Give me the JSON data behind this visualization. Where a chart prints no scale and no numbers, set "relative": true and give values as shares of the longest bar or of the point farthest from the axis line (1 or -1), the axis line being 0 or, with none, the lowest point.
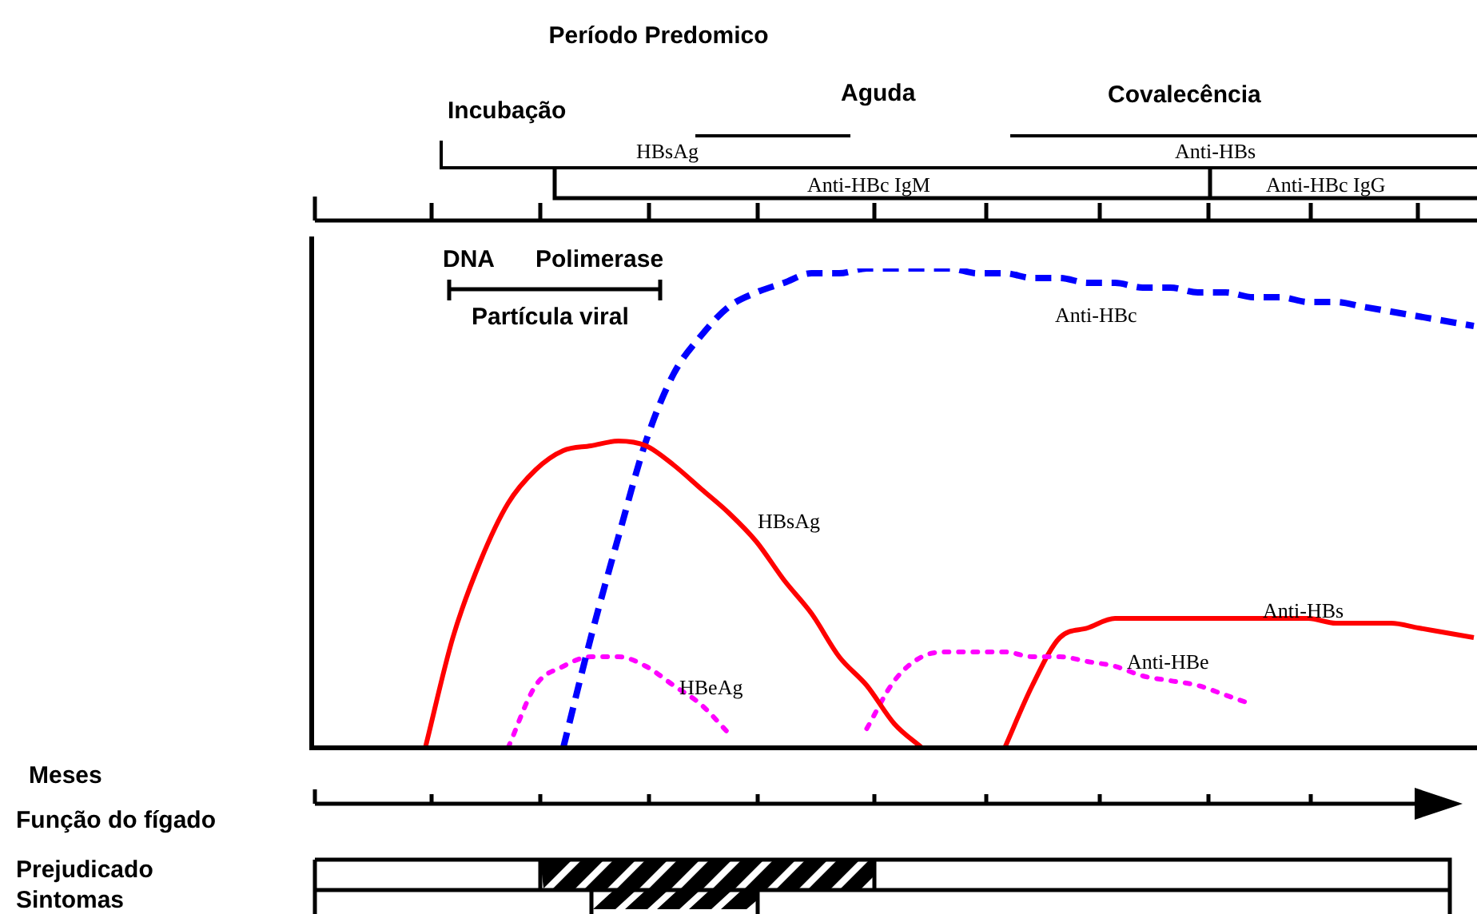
{
  "chart_data": {
    "type": "line",
    "relative": true,
    "legend": false,
    "marker": "none",
    "categories": [
      null,
      null,
      null,
      null,
      null,
      null,
      null,
      null,
      null,
      null,
      null,
      null,
      null,
      null,
      null,
      null,
      null,
      null,
      null,
      null,
      null,
      null,
      null,
      null,
      null,
      null,
      null,
      null,
      null,
      null,
      null,
      null,
      null,
      null,
      null,
      null,
      null,
      null,
      null,
      null,
      null,
      null,
      null
    ],
    "series": [
      {
        "name": "HBsAg",
        "color": "#ff0000",
        "line_style": "solid",
        "values": [
          null,
          null,
          null,
          null,
          0,
          0.23,
          0.39,
          0.51,
          0.58,
          0.62,
          0.63,
          0.64,
          0.63,
          0.59,
          0.54,
          0.49,
          0.43,
          0.35,
          0.28,
          0.19,
          0.13,
          0.05,
          0,
          null,
          null,
          null,
          null,
          null,
          null,
          null,
          null,
          null,
          null,
          null,
          null,
          null,
          null,
          null,
          null,
          null,
          null,
          null,
          null
        ]
      },
      {
        "name": "Anti-HBc",
        "color": "#0000ff",
        "line_style": "dashed",
        "values": [
          null,
          null,
          null,
          null,
          null,
          null,
          null,
          null,
          null,
          0,
          0.23,
          0.44,
          0.64,
          0.78,
          0.86,
          0.92,
          0.95,
          0.97,
          0.99,
          0.99,
          1,
          1,
          1,
          1,
          0.99,
          0.99,
          0.98,
          0.98,
          0.97,
          0.97,
          0.96,
          0.96,
          0.95,
          0.95,
          0.94,
          0.94,
          0.93,
          0.93,
          0.92,
          0.91,
          0.9,
          0.89,
          0.88
        ]
      },
      {
        "name": "HBeAg",
        "color": "#ff00ff",
        "line_style": "dotted",
        "values": [
          null,
          null,
          null,
          null,
          null,
          null,
          null,
          0,
          0.13,
          0.17,
          0.19,
          0.19,
          0.17,
          0.13,
          0.09,
          0.03,
          null,
          null,
          null,
          null,
          null,
          null,
          null,
          null,
          null,
          null,
          null,
          null,
          null,
          null,
          null,
          null,
          null,
          null,
          null,
          null,
          null,
          null,
          null,
          null,
          null,
          null,
          null
        ]
      },
      {
        "name": "Anti-HBe",
        "color": "#ff00ff",
        "line_style": "dotted",
        "values": [
          null,
          null,
          null,
          null,
          null,
          null,
          null,
          null,
          null,
          null,
          null,
          null,
          null,
          null,
          null,
          null,
          null,
          null,
          null,
          null,
          0.04,
          0.14,
          0.19,
          0.2,
          0.2,
          0.2,
          0.19,
          0.19,
          0.18,
          0.17,
          0.15,
          0.14,
          0.13,
          0.11,
          0.09,
          null,
          null,
          null,
          null,
          null,
          null,
          null,
          null
        ]
      },
      {
        "name": "Anti-HBs",
        "color": "#ff0000",
        "line_style": "solid",
        "values": [
          null,
          null,
          null,
          null,
          null,
          null,
          null,
          null,
          null,
          null,
          null,
          null,
          null,
          null,
          null,
          null,
          null,
          null,
          null,
          null,
          null,
          null,
          null,
          null,
          null,
          0,
          0.13,
          0.23,
          0.25,
          0.27,
          0.27,
          0.27,
          0.27,
          0.27,
          0.27,
          0.27,
          0.27,
          0.26,
          0.26,
          0.26,
          0.25,
          0.24,
          0.23
        ]
      }
    ],
    "annotations": [
      "Período Predomico",
      "Incubação",
      "Aguda",
      "Covalecência",
      "HBsAg",
      "Anti-HBs",
      "Anti-HBc IgM",
      "Anti-HBc IgG",
      "DNA",
      "Polimerase",
      "Partícula viral",
      "Meses",
      "Função do fígado",
      "Prejudicado",
      "Sintomas"
    ]
  }
}
